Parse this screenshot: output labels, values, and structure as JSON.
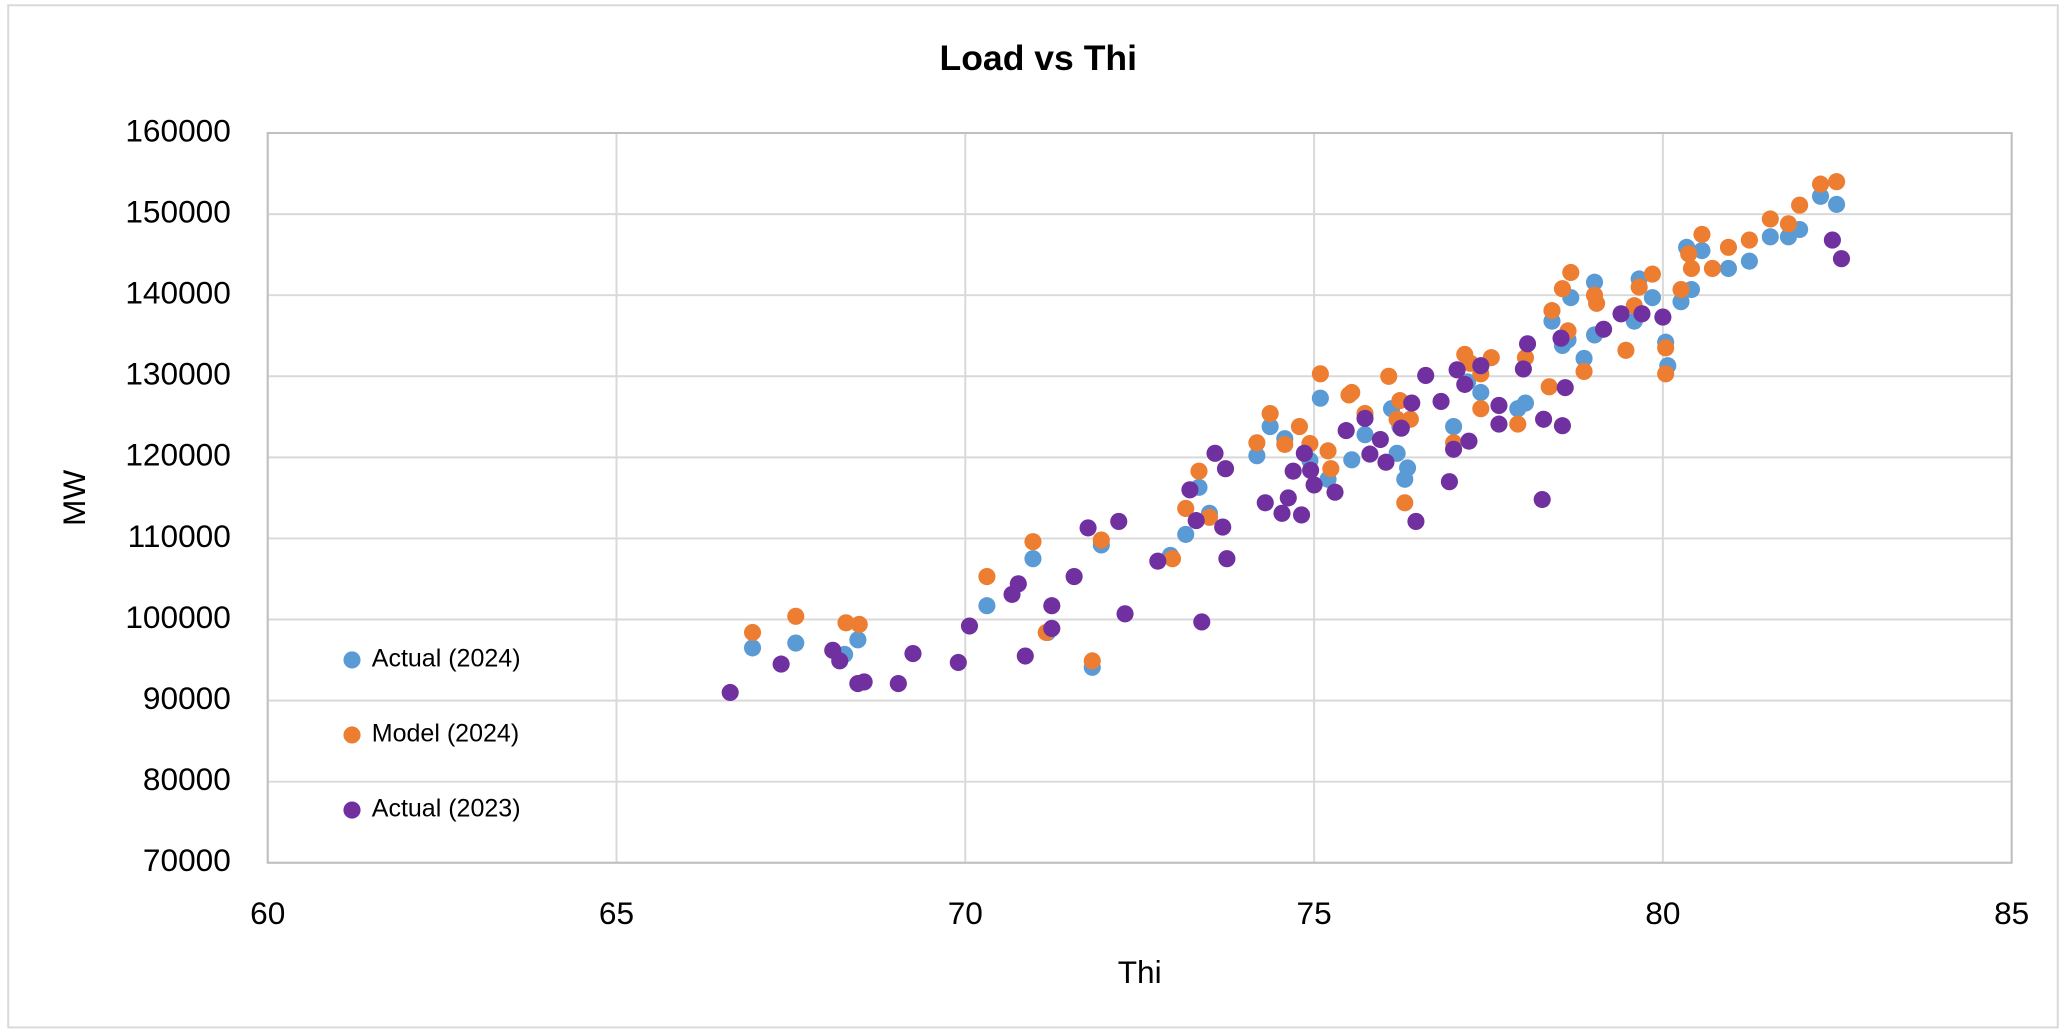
{
  "chart_data": {
    "type": "scatter",
    "title": "Load vs Thi",
    "x_label": "Thi",
    "y_label": "MW",
    "xlim": [
      60,
      85
    ],
    "xticks": [
      60,
      65,
      70,
      75,
      80,
      85
    ],
    "ylim": [
      70000,
      160000
    ],
    "yticks": [
      70000,
      80000,
      90000,
      100000,
      110000,
      120000,
      130000,
      140000,
      150000,
      160000
    ],
    "grid": true,
    "legend": "lower left",
    "series": [
      {
        "name": "Actual (2024)",
        "color": "#5b9bd5",
        "x": [
          66.95,
          67.57,
          68.27,
          68.46,
          70.31,
          70.97,
          71.18,
          71.82,
          71.95,
          72.94,
          73.16,
          73.35,
          73.5,
          74.18,
          74.37,
          74.58,
          74.94,
          75.09,
          75.2,
          75.54,
          75.73,
          76.11,
          76.19,
          76.23,
          76.3,
          76.34,
          77.0,
          77.2,
          77.39,
          77.92,
          78.03,
          78.41,
          78.56,
          78.64,
          78.68,
          78.87,
          79.02,
          79.02,
          79.59,
          79.66,
          79.85,
          80.04,
          80.07,
          80.26,
          80.34,
          80.41,
          80.56,
          80.94,
          81.24,
          81.54,
          81.8,
          81.96,
          82.26,
          82.49
        ],
        "values": [
          96500,
          97100,
          95700,
          97500,
          101700,
          107500,
          98400,
          94100,
          109200,
          107900,
          110500,
          116300,
          113100,
          120200,
          123800,
          122300,
          119600,
          127300,
          117300,
          119700,
          122800,
          126000,
          120500,
          123800,
          117300,
          118700,
          123800,
          129300,
          128000,
          126000,
          126700,
          136800,
          133800,
          134500,
          139700,
          132200,
          135100,
          141600,
          136800,
          142000,
          139700,
          134200,
          131300,
          139200,
          145900,
          140700,
          145500,
          143300,
          144200,
          147200,
          147200,
          148100,
          152200,
          151200
        ]
      },
      {
        "name": "Model (2024)",
        "color": "#ed7d31",
        "x": [
          66.95,
          67.57,
          68.29,
          68.48,
          70.31,
          70.97,
          71.16,
          71.82,
          71.95,
          72.97,
          73.16,
          73.35,
          73.5,
          74.18,
          74.37,
          74.58,
          74.79,
          74.94,
          75.09,
          75.2,
          75.24,
          75.5,
          75.54,
          75.73,
          76.07,
          76.19,
          76.23,
          76.3,
          76.38,
          77.0,
          77.16,
          77.24,
          77.39,
          77.39,
          77.54,
          77.92,
          78.03,
          78.37,
          78.41,
          78.56,
          78.64,
          78.68,
          78.87,
          79.02,
          79.05,
          79.47,
          79.59,
          79.66,
          79.85,
          80.04,
          80.04,
          80.26,
          80.37,
          80.41,
          80.56,
          80.71,
          80.94,
          81.24,
          81.54,
          81.8,
          81.96,
          82.26,
          82.49
        ],
        "values": [
          98400,
          100400,
          99600,
          99400,
          105300,
          109600,
          98400,
          94900,
          109800,
          107500,
          113700,
          118300,
          112600,
          121800,
          125400,
          121600,
          123800,
          121700,
          130300,
          120800,
          118600,
          127700,
          128000,
          125400,
          130000,
          124700,
          127000,
          114400,
          124700,
          121800,
          132700,
          131600,
          130300,
          126000,
          132300,
          124100,
          132300,
          128700,
          138100,
          140800,
          135600,
          142800,
          130600,
          140000,
          139000,
          133200,
          138700,
          141000,
          142600,
          133500,
          130300,
          140700,
          145100,
          143300,
          147500,
          143300,
          145900,
          146800,
          149400,
          148800,
          151100,
          153700,
          154000
        ]
      },
      {
        "name": "Actual (2023)",
        "color": "#7030a0",
        "x": [
          66.63,
          67.36,
          68.1,
          68.2,
          68.46,
          68.55,
          69.04,
          69.25,
          69.9,
          70.06,
          70.67,
          70.76,
          70.86,
          71.24,
          71.24,
          71.56,
          71.76,
          72.2,
          72.29,
          72.76,
          73.22,
          73.31,
          73.39,
          73.58,
          73.69,
          73.73,
          73.75,
          74.3,
          74.54,
          74.63,
          74.7,
          74.82,
          74.86,
          74.95,
          75.0,
          75.3,
          75.46,
          75.73,
          75.8,
          75.95,
          76.03,
          76.25,
          76.4,
          76.46,
          76.6,
          76.82,
          76.94,
          77.0,
          77.05,
          77.16,
          77.22,
          77.39,
          77.65,
          77.65,
          78.0,
          78.06,
          78.27,
          78.29,
          78.54,
          78.56,
          78.6,
          79.15,
          79.4,
          79.7,
          80.0,
          82.43,
          82.56
        ],
        "values": [
          91000,
          94500,
          96200,
          94900,
          92100,
          92300,
          92100,
          95800,
          94700,
          99200,
          103100,
          104400,
          95500,
          101700,
          98900,
          105300,
          111300,
          112100,
          100700,
          107200,
          116000,
          112200,
          99700,
          120500,
          111400,
          118600,
          107500,
          114400,
          113100,
          115000,
          118300,
          112900,
          120500,
          118400,
          116600,
          115700,
          123300,
          124800,
          120400,
          122200,
          119400,
          123600,
          126700,
          112100,
          130100,
          126900,
          117000,
          121000,
          130800,
          129000,
          122000,
          131300,
          126400,
          124100,
          130900,
          134000,
          114800,
          124700,
          134700,
          123900,
          128600,
          135800,
          137700,
          137700,
          137300,
          146800,
          144500
        ]
      }
    ]
  }
}
